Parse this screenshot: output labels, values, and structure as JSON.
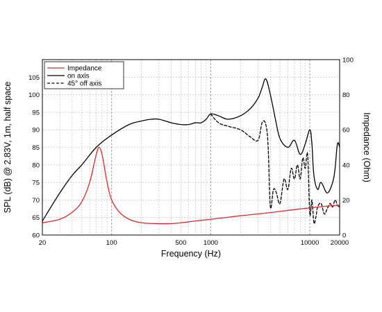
{
  "chart_data": {
    "type": "line",
    "title": "",
    "xlabel": "Frequency (Hz)",
    "ylabel_left": "SPL (dB) @ 2.83V, 1m, half space",
    "ylabel_right": "Impedance (Ohm)",
    "x_scale": "log",
    "xlim": [
      20,
      20000
    ],
    "ylim_left": [
      60,
      110
    ],
    "ylim_right": [
      0,
      100
    ],
    "x_ticks": [
      {
        "value": 20,
        "label": "20"
      },
      {
        "value": 100,
        "label": "100"
      },
      {
        "value": 500,
        "label": "500"
      },
      {
        "value": 1000,
        "label": "1000"
      },
      {
        "value": 10000,
        "label": "10000"
      },
      {
        "value": 20000,
        "label": "20000"
      }
    ],
    "y_ticks_left": [
      "60",
      "65",
      "70",
      "75",
      "80",
      "85",
      "90",
      "95",
      "100",
      "105"
    ],
    "y_ticks_right": [
      "0",
      "20",
      "40",
      "60",
      "80",
      "100"
    ],
    "grid": true,
    "legend_position": "top-left",
    "colors": {
      "impedance": "#d42a2a",
      "on_axis": "#000000",
      "off_axis": "#000000"
    },
    "series": [
      {
        "name": "Impedance",
        "axis": "right",
        "style": "solid",
        "color": "#d42a2a",
        "x": [
          20,
          30,
          40,
          50,
          60,
          70,
          75,
          80,
          85,
          90,
          100,
          120,
          150,
          200,
          300,
          400,
          500,
          700,
          1000,
          2000,
          3000,
          5000,
          7000,
          10000,
          15000,
          20000
        ],
        "y": [
          7,
          9,
          13,
          19,
          30,
          46,
          50,
          46,
          38,
          30,
          20,
          13,
          9,
          7,
          6.5,
          6.5,
          7,
          8,
          9,
          11,
          12,
          13.5,
          14.5,
          15.5,
          16.5,
          17
        ]
      },
      {
        "name": "on axis",
        "axis": "left",
        "style": "solid",
        "color": "#000000",
        "x": [
          20,
          30,
          40,
          50,
          70,
          100,
          150,
          200,
          250,
          300,
          400,
          500,
          600,
          700,
          800,
          900,
          1000,
          1200,
          1500,
          2000,
          2500,
          3000,
          3300,
          3600,
          4000,
          4500,
          5000,
          6000,
          7000,
          8000,
          9000,
          10000,
          10500,
          11000,
          12000,
          13000,
          15000,
          17000,
          18000,
          19000,
          20000
        ],
        "y": [
          64,
          72,
          77,
          80,
          85,
          88.5,
          91.5,
          92.5,
          93,
          93,
          92,
          91.5,
          91.5,
          92,
          92,
          93,
          94.5,
          94,
          93,
          94,
          96,
          99,
          102,
          104.5,
          100,
          93,
          87.5,
          85,
          87,
          83,
          86,
          90,
          86,
          77,
          73,
          75,
          72,
          75,
          79,
          86,
          85
        ]
      },
      {
        "name": "45° off axis",
        "axis": "left",
        "style": "dashed",
        "color": "#000000",
        "x": [
          1000,
          1200,
          1500,
          2000,
          2500,
          3000,
          3300,
          3600,
          3800,
          4000,
          4300,
          4600,
          5000,
          5500,
          6000,
          6500,
          7000,
          7500,
          8000,
          8500,
          9000,
          9500,
          10000,
          10500,
          11000,
          11500,
          12000,
          13000,
          14000,
          15000,
          16000,
          17000,
          18000,
          19000,
          20000
        ],
        "y": [
          94.5,
          92,
          91,
          90,
          88,
          87,
          92,
          91.5,
          85,
          68,
          73,
          72,
          69,
          76,
          73,
          79,
          76,
          80,
          76,
          82,
          79,
          83,
          66,
          70,
          63.5,
          65,
          68,
          69,
          66,
          67.5,
          69,
          68,
          70,
          68.5,
          68
        ]
      }
    ]
  }
}
